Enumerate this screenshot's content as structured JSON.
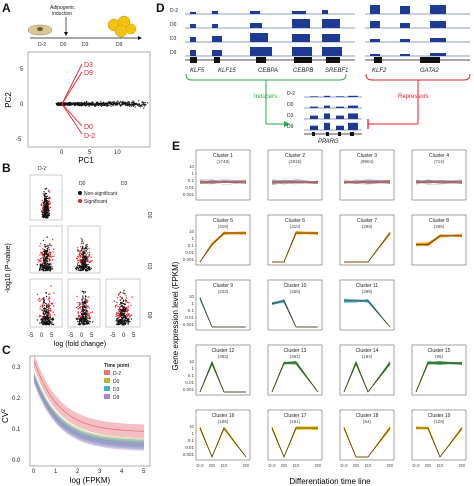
{
  "panels": {
    "A": {
      "label": "A",
      "header": {
        "induction_text": "Adipogenic\ninduction",
        "stages": [
          "D-2",
          "D0",
          "D3",
          "D9"
        ]
      },
      "scatter": {
        "x_label": "PC1",
        "y_label": "PC2",
        "x_ticks": [
          "0",
          "5",
          "10"
        ],
        "y_ticks": [
          "-5",
          "0",
          "5"
        ],
        "arrows": [
          {
            "label": "D3",
            "color": "#e0242b"
          },
          {
            "label": "D9",
            "color": "#e0242b"
          },
          {
            "label": "D0",
            "color": "#e0242b"
          },
          {
            "label": "D-2",
            "color": "#e0242b"
          }
        ]
      }
    },
    "B": {
      "label": "B",
      "col_labels": [
        "D-2",
        "D0",
        "D3"
      ],
      "row_labels": [
        "D0",
        "D3",
        "D9"
      ],
      "legend": [
        {
          "name": "Non-significant",
          "color": "#111111"
        },
        {
          "name": "Significant",
          "color": "#e0242b"
        }
      ],
      "y_label": "-log10 (P-value)",
      "x_label": "log (fold change)",
      "x_ticks": [
        "-5",
        "0",
        "5"
      ]
    },
    "C": {
      "label": "C",
      "legend_title": "Time point",
      "series": [
        {
          "name": "D-2",
          "color": "#e8737a"
        },
        {
          "name": "D0",
          "color": "#b7b236"
        },
        {
          "name": "D3",
          "color": "#3fb4d6"
        },
        {
          "name": "D9",
          "color": "#b084cc"
        }
      ],
      "y_label": "CV",
      "y_label_sup": "2",
      "x_label": "log (FPKM)",
      "x_ticks": [
        "0",
        "1",
        "2",
        "3",
        "4",
        "5"
      ],
      "y_ticks": [
        "0.0",
        "0.1",
        "0.2",
        "0.3"
      ]
    },
    "D": {
      "label": "D",
      "track_labels": [
        "D-2",
        "D0",
        "D3",
        "D9"
      ],
      "genes_left": [
        "KLF5",
        "KLF15",
        "CEBPA",
        "CEBPB",
        "SREBF1"
      ],
      "genes_right": [
        "KLF2",
        "GATA2"
      ],
      "gene_center": "PPARG",
      "inducers_label": "Inducers",
      "repressors_label": "Repressors",
      "colors": {
        "track": "#1f3a93",
        "inducers": "#2aa84a",
        "repressors": "#e0242b"
      }
    },
    "E": {
      "label": "E",
      "y_label": "Gene expression level (FPKM)",
      "x_label": "Differentiation time line",
      "x_ticks": [
        "D-2",
        "D0",
        "D3",
        "D9"
      ],
      "y_ticks": [
        "10",
        "1",
        "0.1",
        "0.01",
        "0.001"
      ],
      "clusters": [
        {
          "name": "Cluster 1",
          "count": "(1748)",
          "color": "#8c8c8c",
          "pattern": [
            1,
            1,
            1,
            1
          ]
        },
        {
          "name": "Cluster 2",
          "count": "(2815)",
          "color": "#8c8c8c",
          "pattern": [
            1,
            1,
            1,
            1
          ]
        },
        {
          "name": "Cluster 3",
          "count": "(9904)",
          "color": "#8c8c8c",
          "pattern": [
            1,
            1,
            1,
            1
          ]
        },
        {
          "name": "Cluster 4",
          "count": "(714)",
          "color": "#8c8c8c",
          "pattern": [
            1,
            1,
            1,
            1
          ]
        },
        {
          "name": "Cluster 5",
          "count": "(319)",
          "color": "#f08c00",
          "pattern": [
            0,
            0.6,
            1,
            1
          ]
        },
        {
          "name": "Cluster 6",
          "count": "(310)",
          "color": "#f08c00",
          "pattern": [
            0,
            0,
            1,
            1
          ]
        },
        {
          "name": "Cluster 7",
          "count": "(299)",
          "color": "#f08c00",
          "pattern": [
            0,
            0,
            0,
            1
          ]
        },
        {
          "name": "Cluster 8",
          "count": "(265)",
          "color": "#f08c00",
          "pattern": [
            0.6,
            0.6,
            0.9,
            0.9
          ]
        },
        {
          "name": "Cluster 9",
          "count": "(223)",
          "color": "#3ea6dc",
          "pattern": [
            1,
            0,
            0,
            0
          ]
        },
        {
          "name": "Cluster 10",
          "count": "(258)",
          "color": "#3ea6dc",
          "pattern": [
            0.8,
            0.9,
            0,
            0
          ]
        },
        {
          "name": "Cluster 11",
          "count": "(299)",
          "color": "#3ea6dc",
          "pattern": [
            0.9,
            0.9,
            0.9,
            0
          ]
        },
        {
          "name": "Cluster 12",
          "count": "(353)",
          "color": "#2c9a50",
          "pattern": [
            0,
            1,
            0,
            0
          ]
        },
        {
          "name": "Cluster 13",
          "count": "(461)",
          "color": "#2c9a50",
          "pattern": [
            0,
            1,
            1,
            0
          ]
        },
        {
          "name": "Cluster 14",
          "count": "(194)",
          "color": "#2c9a50",
          "pattern": [
            0,
            1,
            0,
            1
          ]
        },
        {
          "name": "Cluster 15",
          "count": "(95)",
          "color": "#2c9a50",
          "pattern": [
            0,
            1,
            1,
            1
          ]
        },
        {
          "name": "Cluster 16",
          "count": "(186)",
          "color": "#e0b800",
          "pattern": [
            1,
            0,
            1,
            0
          ]
        },
        {
          "name": "Cluster 17",
          "count": "(151)",
          "color": "#e0b800",
          "pattern": [
            1,
            0,
            1,
            1
          ]
        },
        {
          "name": "Cluster 18",
          "count": "(64)",
          "color": "#e0b800",
          "pattern": [
            1,
            0,
            0,
            1
          ]
        },
        {
          "name": "Cluster 19",
          "count": "(129)",
          "color": "#e0b800",
          "pattern": [
            1,
            1,
            0,
            1
          ]
        }
      ]
    }
  }
}
